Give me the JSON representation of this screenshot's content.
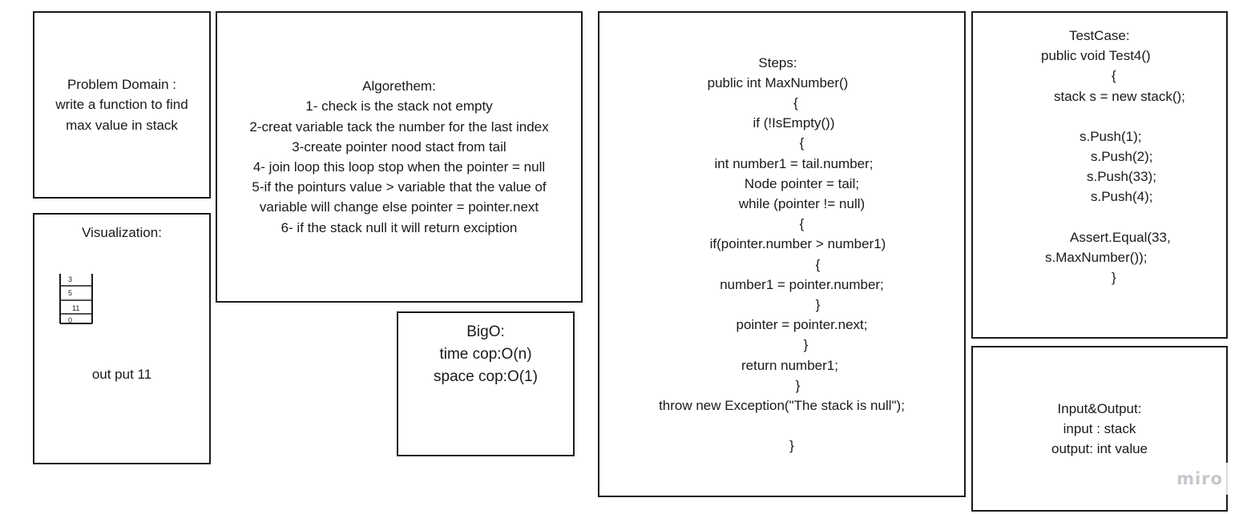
{
  "problem_domain": {
    "lines": [
      "Problem Domain :",
      "write a function to find",
      "max value in stack"
    ]
  },
  "visualization": {
    "title": "Visualization:",
    "stack_cells": [
      "3",
      "5",
      "11",
      "0"
    ],
    "output": "out put 11"
  },
  "algorithm": {
    "lines": [
      "Algorethem:",
      "1- check is the stack not empty",
      "2-creat variable tack the number for the last index",
      "3-create pointer nood stact from tail",
      "4- join loop this loop stop when the pointer = null",
      "5-if the pointurs value > variable that the value of",
      "variable will change else pointer = pointer.next",
      "6- if the stack null it will return exciption"
    ]
  },
  "big_o": {
    "lines": [
      "BigO:",
      "time cop:O(n)",
      "space cop:O(1)"
    ]
  },
  "steps": {
    "lines": [
      "Steps:",
      "public int MaxNumber()",
      "{",
      "if (!IsEmpty())",
      "{",
      "int number1 = tail.number;",
      "Node pointer = tail;",
      "while (pointer != null)",
      "{",
      "if(pointer.number > number1)",
      "{",
      "number1 = pointer.number;",
      "}",
      "pointer = pointer.next;",
      "}",
      "return number1;",
      "}",
      "throw new Exception(\"The stack is null\");",
      "",
      "}"
    ]
  },
  "test_case": {
    "lines": [
      "TestCase:",
      "public void Test4()",
      "{",
      "stack s = new stack();",
      "",
      "s.Push(1);",
      "s.Push(2);",
      "s.Push(33);",
      "s.Push(4);",
      "",
      "Assert.Equal(33,",
      "s.MaxNumber());",
      "}"
    ]
  },
  "input_output": {
    "lines": [
      "Input&Output:",
      "input : stack",
      "output: int value"
    ]
  },
  "watermark": "miro"
}
